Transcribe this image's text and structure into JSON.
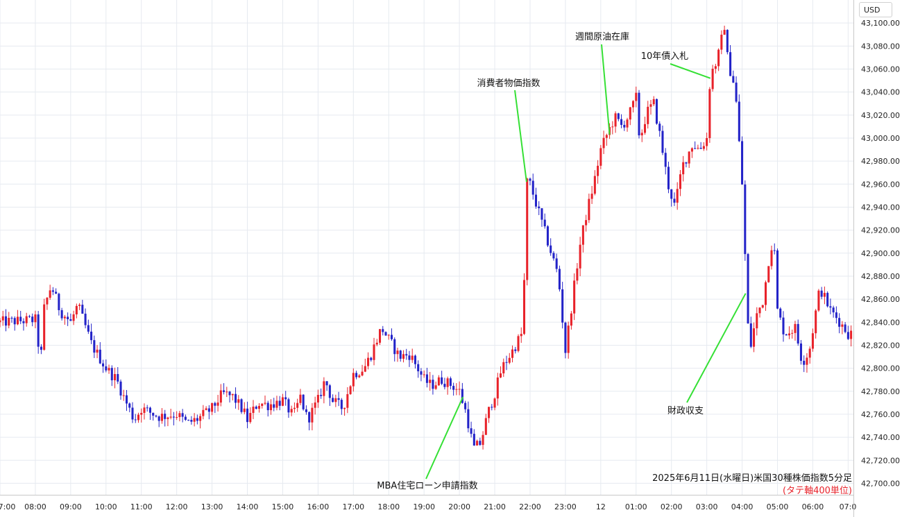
{
  "currency_button": "USD",
  "chart_data": {
    "type": "candlestick",
    "title": "2025年6月11日(水曜日)米国30種株価指数5分足",
    "subtitle": "(タテ軸400単位)",
    "ylim": [
      42690,
      43120
    ],
    "y_ticks": [
      42700,
      42720,
      42740,
      42760,
      42780,
      42800,
      42820,
      42840,
      42860,
      42880,
      42900,
      42920,
      42940,
      42960,
      42980,
      43000,
      43020,
      43040,
      43060,
      43080,
      43100
    ],
    "y_tick_labels": [
      "42,700.00",
      "42,720.00",
      "42,740.00",
      "42,760.00",
      "42,780.00",
      "42,800.00",
      "42,820.00",
      "42,840.00",
      "42,860.00",
      "42,880.00",
      "42,900.00",
      "42,920.00",
      "42,940.00",
      "42,960.00",
      "42,980.00",
      "43,000.00",
      "43,020.00",
      "43,040.00",
      "43,060.00",
      "43,080.00",
      "43,100.00"
    ],
    "x_range_hours": [
      7,
      31.15
    ],
    "x_ticks": [
      7,
      8,
      9,
      10,
      11,
      12,
      13,
      14,
      15,
      16,
      17,
      18,
      19,
      20,
      21,
      22,
      23,
      24,
      25,
      26,
      27,
      28,
      29,
      30,
      31
    ],
    "x_tick_labels": [
      "7:00",
      "08:00",
      "09:00",
      "10:00",
      "11:00",
      "12:00",
      "13:00",
      "14:00",
      "15:00",
      "16:00",
      "17:00",
      "18:00",
      "19:00",
      "20:00",
      "21:00",
      "22:00",
      "23:00",
      "12",
      "01:00",
      "02:00",
      "03:00",
      "04:00",
      "05:00",
      "06:00",
      "07:0"
    ],
    "grid": true,
    "up_color": "#e8222a",
    "down_color": "#2323c8",
    "annotation_color": "#35e035",
    "close_path": [
      [
        7.0,
        42840
      ],
      [
        8.0,
        42842
      ],
      [
        8.15,
        42805
      ],
      [
        8.25,
        42852
      ],
      [
        8.45,
        42872
      ],
      [
        8.7,
        42850
      ],
      [
        9.0,
        42840
      ],
      [
        9.2,
        42855
      ],
      [
        9.6,
        42820
      ],
      [
        10.0,
        42800
      ],
      [
        10.3,
        42790
      ],
      [
        10.5,
        42775
      ],
      [
        10.8,
        42755
      ],
      [
        11.0,
        42765
      ],
      [
        11.5,
        42758
      ],
      [
        12.0,
        42760
      ],
      [
        12.3,
        42752
      ],
      [
        12.6,
        42756
      ],
      [
        13.0,
        42765
      ],
      [
        13.3,
        42778
      ],
      [
        13.6,
        42775
      ],
      [
        13.9,
        42762
      ],
      [
        14.0,
        42755
      ],
      [
        14.3,
        42770
      ],
      [
        14.6,
        42768
      ],
      [
        15.0,
        42772
      ],
      [
        15.3,
        42758
      ],
      [
        15.5,
        42775
      ],
      [
        15.7,
        42755
      ],
      [
        16.0,
        42772
      ],
      [
        16.2,
        42790
      ],
      [
        16.4,
        42772
      ],
      [
        16.7,
        42765
      ],
      [
        17.0,
        42795
      ],
      [
        17.3,
        42800
      ],
      [
        17.5,
        42812
      ],
      [
        17.6,
        42820
      ],
      [
        17.8,
        42835
      ],
      [
        18.0,
        42825
      ],
      [
        18.3,
        42810
      ],
      [
        18.6,
        42812
      ],
      [
        19.0,
        42790
      ],
      [
        19.2,
        42785
      ],
      [
        19.5,
        42790
      ],
      [
        19.8,
        42785
      ],
      [
        20.0,
        42780
      ],
      [
        20.2,
        42760
      ],
      [
        20.4,
        42730
      ],
      [
        20.6,
        42735
      ],
      [
        20.8,
        42760
      ],
      [
        21.0,
        42778
      ],
      [
        21.2,
        42800
      ],
      [
        21.5,
        42815
      ],
      [
        21.8,
        42832
      ],
      [
        21.9,
        42962
      ],
      [
        22.0,
        42960
      ],
      [
        22.2,
        42940
      ],
      [
        22.5,
        42910
      ],
      [
        22.7,
        42890
      ],
      [
        22.8,
        42880
      ],
      [
        23.0,
        42815
      ],
      [
        23.2,
        42860
      ],
      [
        23.4,
        42905
      ],
      [
        23.6,
        42935
      ],
      [
        23.8,
        42960
      ],
      [
        24.0,
        42990
      ],
      [
        24.2,
        43005
      ],
      [
        24.4,
        43018
      ],
      [
        24.6,
        43010
      ],
      [
        24.8,
        43020
      ],
      [
        25.0,
        43035
      ],
      [
        25.1,
        42998
      ],
      [
        25.3,
        43022
      ],
      [
        25.5,
        43030
      ],
      [
        25.7,
        42998
      ],
      [
        25.9,
        42960
      ],
      [
        26.1,
        42940
      ],
      [
        26.3,
        42975
      ],
      [
        26.6,
        42995
      ],
      [
        26.8,
        42990
      ],
      [
        27.0,
        43000
      ],
      [
        27.1,
        43055
      ],
      [
        27.3,
        43068
      ],
      [
        27.5,
        43098
      ],
      [
        27.6,
        43065
      ],
      [
        27.8,
        43045
      ],
      [
        28.0,
        42960
      ],
      [
        28.1,
        42886
      ],
      [
        28.2,
        42812
      ],
      [
        28.4,
        42845
      ],
      [
        28.6,
        42860
      ],
      [
        28.8,
        42905
      ],
      [
        28.9,
        42910
      ],
      [
        29.0,
        42850
      ],
      [
        29.2,
        42830
      ],
      [
        29.5,
        42835
      ],
      [
        29.7,
        42805
      ],
      [
        29.9,
        42815
      ],
      [
        30.2,
        42870
      ],
      [
        30.5,
        42850
      ],
      [
        30.7,
        42843
      ],
      [
        31.0,
        42830
      ]
    ],
    "callouts": [
      {
        "label": "消費者物価指数",
        "time": 21.9,
        "value": 42962
      },
      {
        "label": "週間原油在庫",
        "time": 24.25,
        "value": 43003
      },
      {
        "label": "10年債入札",
        "time": 27.1,
        "value": 43052
      },
      {
        "label": "MBA住宅ローン申請指数",
        "time": 20.1,
        "value": 42775
      },
      {
        "label": "財政収支",
        "time": 28.1,
        "value": 42865
      }
    ]
  }
}
